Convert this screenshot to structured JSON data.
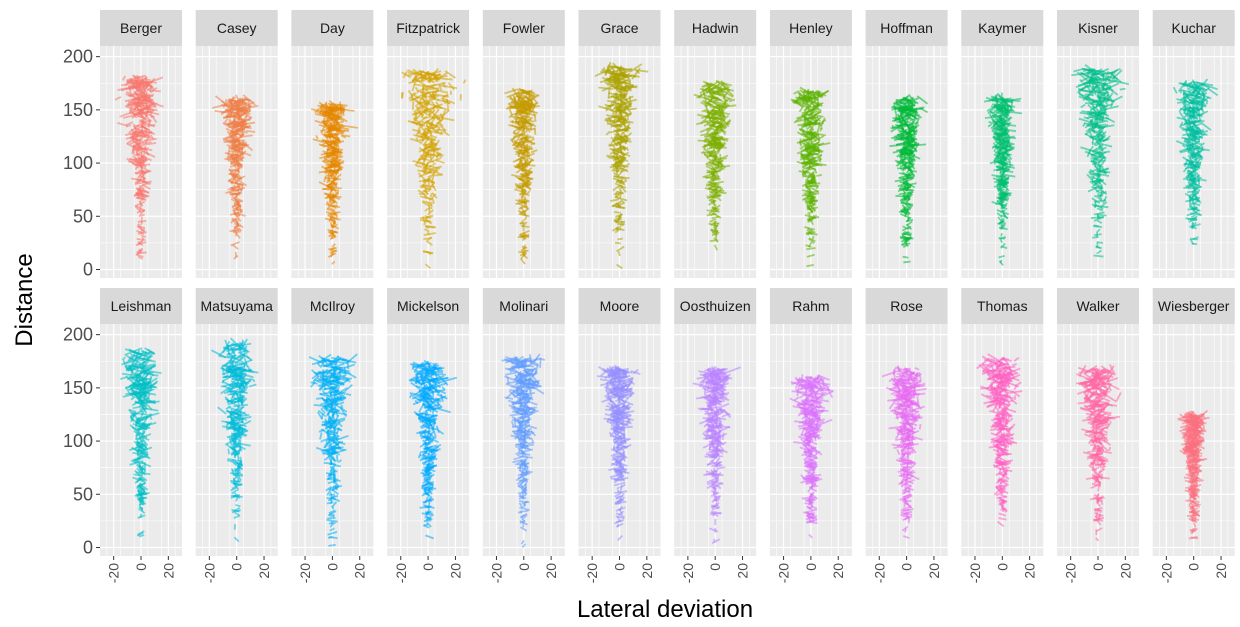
{
  "chart_data": {
    "type": "faceted-segment",
    "xlabel": "Lateral deviation",
    "ylabel": "Distance",
    "xlim": [
      -30,
      30
    ],
    "ylim": [
      -8,
      210
    ],
    "x_ticks": [
      -20,
      0,
      20
    ],
    "x_tick_labels": [
      "-20",
      "0",
      "20"
    ],
    "y_ticks": [
      0,
      50,
      100,
      150,
      200
    ],
    "y_tick_labels": [
      "0",
      "50",
      "100",
      "150",
      "200"
    ],
    "grid": true,
    "legend": "none",
    "panel_background": "#ebebeb",
    "strip_background": "#d9d9d9",
    "facets": [
      {
        "name": "Berger",
        "color": "#F8766D",
        "max_distance": 180,
        "half_width": 14
      },
      {
        "name": "Casey",
        "color": "#EF7F47",
        "max_distance": 160,
        "half_width": 10
      },
      {
        "name": "Day",
        "color": "#E58700",
        "max_distance": 155,
        "half_width": 10
      },
      {
        "name": "Fitzpatrick",
        "color": "#D4A200",
        "max_distance": 185,
        "half_width": 20
      },
      {
        "name": "Fowler",
        "color": "#C49A00",
        "max_distance": 168,
        "half_width": 10
      },
      {
        "name": "Grace",
        "color": "#ABA300",
        "max_distance": 190,
        "half_width": 12
      },
      {
        "name": "Hadwin",
        "color": "#7CAE00",
        "max_distance": 175,
        "half_width": 12
      },
      {
        "name": "Henley",
        "color": "#5BB300",
        "max_distance": 168,
        "half_width": 12
      },
      {
        "name": "Hoffman",
        "color": "#00BA38",
        "max_distance": 160,
        "half_width": 10
      },
      {
        "name": "Kaymer",
        "color": "#00BF6F",
        "max_distance": 162,
        "half_width": 8
      },
      {
        "name": "Kisner",
        "color": "#00C08B",
        "max_distance": 188,
        "half_width": 15
      },
      {
        "name": "Kuchar",
        "color": "#00BFA0",
        "max_distance": 175,
        "half_width": 12
      },
      {
        "name": "Leishman",
        "color": "#00BFC4",
        "max_distance": 185,
        "half_width": 12
      },
      {
        "name": "Matsuyama",
        "color": "#00BCD8",
        "max_distance": 192,
        "half_width": 12
      },
      {
        "name": "McIlroy",
        "color": "#00B0F6",
        "max_distance": 178,
        "half_width": 15
      },
      {
        "name": "Mickelson",
        "color": "#00A9FF",
        "max_distance": 172,
        "half_width": 12
      },
      {
        "name": "Molinari",
        "color": "#619CFF",
        "max_distance": 178,
        "half_width": 12
      },
      {
        "name": "Moore",
        "color": "#9590FF",
        "max_distance": 168,
        "half_width": 11
      },
      {
        "name": "Oosthuizen",
        "color": "#B983FF",
        "max_distance": 168,
        "half_width": 11
      },
      {
        "name": "Rahm",
        "color": "#DB72FB",
        "max_distance": 160,
        "half_width": 12
      },
      {
        "name": "Rose",
        "color": "#E76BF3",
        "max_distance": 168,
        "half_width": 13
      },
      {
        "name": "Thomas",
        "color": "#FF61C3",
        "max_distance": 178,
        "half_width": 13
      },
      {
        "name": "Walker",
        "color": "#FF67A4",
        "max_distance": 168,
        "half_width": 14
      },
      {
        "name": "Wiesberger",
        "color": "#FC717F",
        "max_distance": 125,
        "half_width": 7
      }
    ]
  }
}
